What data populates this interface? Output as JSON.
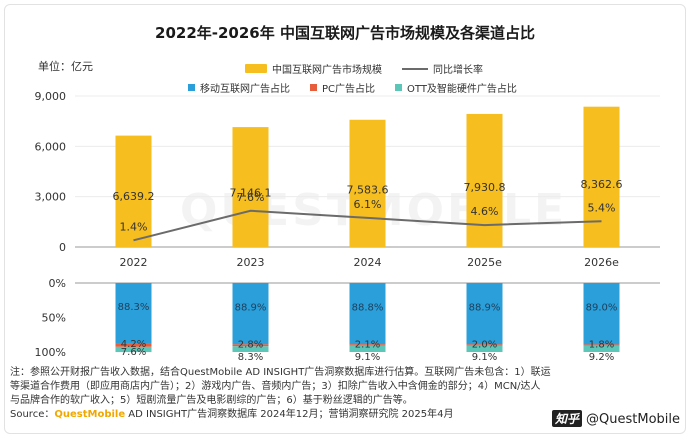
{
  "title": "2022年-2026年 中国互联网广告市场规模及各渠道占比",
  "unit_label": "单位：亿元",
  "watermark": "QUESTMOBILE",
  "chart_data": {
    "type": "bar",
    "categories": [
      "2022",
      "2023",
      "2024",
      "2025e",
      "2026e"
    ],
    "top_chart": {
      "ylim": [
        0,
        9000
      ],
      "yticks": [
        "0",
        "3,000",
        "6,000",
        "9,000"
      ],
      "ytick_values": [
        0,
        3000,
        6000,
        9000
      ],
      "bar_series": {
        "name": "中国互联网广告市场规模",
        "values": [
          6639.2,
          7146.1,
          7583.6,
          7930.8,
          8362.6
        ],
        "labels": [
          "6,639.2",
          "7,146.1",
          "7,583.6",
          "7,930.8",
          "8,362.6"
        ],
        "color": "#f6be1e"
      },
      "line_series": {
        "name": "同比增长率",
        "values": [
          1.4,
          7.6,
          6.1,
          4.6,
          5.4
        ],
        "labels": [
          "1.4%",
          "7.6%",
          "6.1%",
          "4.6%",
          "5.4%"
        ],
        "color": "#6b6b6b"
      }
    },
    "bottom_chart": {
      "type": "stacked-bar",
      "ylim": [
        0,
        100
      ],
      "yticks": [
        "0%",
        "50%",
        "100%"
      ],
      "ytick_values": [
        0,
        50,
        100
      ],
      "series": [
        {
          "name": "移动互联网广告占比",
          "values": [
            88.3,
            88.9,
            88.8,
            88.9,
            89.0
          ],
          "labels": [
            "88.3%",
            "88.9%",
            "88.8%",
            "88.9%",
            "89.0%"
          ],
          "color": "#2b9fd9"
        },
        {
          "name": "PC广告占比",
          "values": [
            4.2,
            2.8,
            2.1,
            2.0,
            1.8
          ],
          "labels": [
            "4.2%",
            "2.8%",
            "2.1%",
            "2.0%",
            "1.8%"
          ],
          "color": "#e85d3c"
        },
        {
          "name": "OTT及智能硬件广告占比",
          "values": [
            7.6,
            8.3,
            9.1,
            9.1,
            9.2
          ],
          "labels": [
            "7.6%",
            "8.3%",
            "9.1%",
            "9.1%",
            "9.2%"
          ],
          "color": "#5cc7b8"
        }
      ]
    }
  },
  "notes": {
    "line1": "注：参照公开财报广告收入数据，结合QuestMobile AD INSIGHT广告洞察数据库进行估算。互联网广告未包含：1）联运",
    "line2": "等渠道合作费用（即应用商店内广告）；2）游戏内广告、音频内广告；3）扣除广告收入中含佣金的部分；4）MCN/达人",
    "line3": "与品牌合作的软广收入；5）短剧流量广告及电影剧综的广告；6）基于粉丝逻辑的广告等。",
    "source_prefix": "Source：",
    "source_brand": "QuestMobile",
    "source_rest": " AD INSIGHT广告洞察数据库 2024年12月；营销洞察研究院 2025年4月"
  },
  "credit": {
    "logo_text": "知乎",
    "handle": "@QuestMobile"
  }
}
